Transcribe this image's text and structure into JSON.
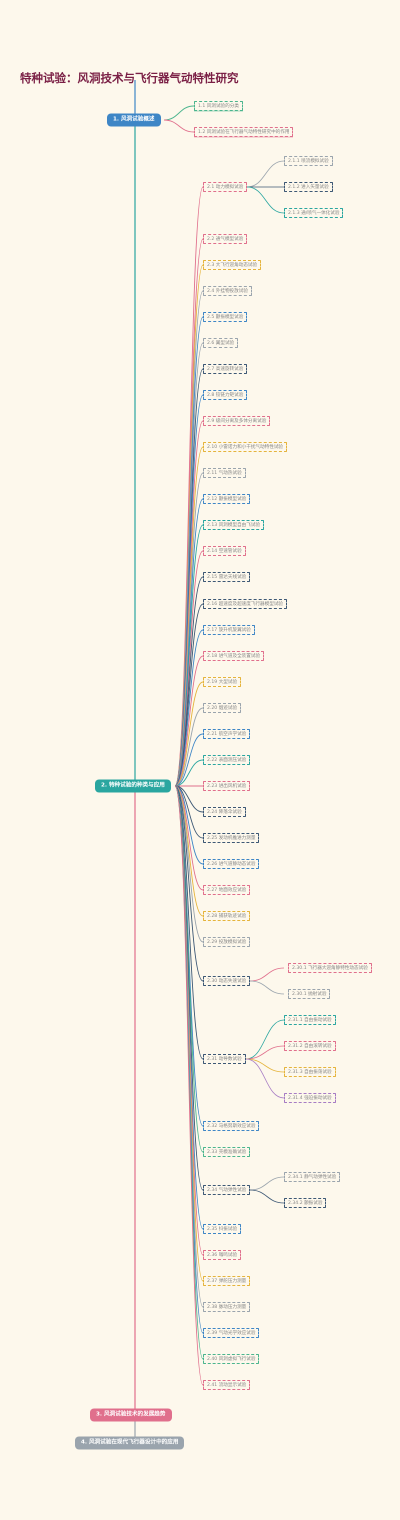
{
  "title": "特种试验：风洞技术与飞行器气动特性研究",
  "colors": {
    "teal": "#2aa6a0",
    "blue": "#3e86c6",
    "yellow": "#e5b43c",
    "pink": "#e06f8c",
    "purple": "#a77cc4",
    "navy": "#3d5875",
    "gray": "#9aa4ad",
    "green": "#4bb58e",
    "red": "#d94f53"
  },
  "sections": [
    {
      "label": "1. 风洞试验概述",
      "color": "#3e86c6",
      "children": [
        {
          "label": "1.1 风洞试验的分类",
          "color": "#4bb58e"
        },
        {
          "label": "1.2 风洞试验在飞行器气动特性研究中的作用",
          "color": "#e06f8c"
        }
      ]
    },
    {
      "label": "2. 特种试验的种类与应用",
      "color": "#2aa6a0",
      "children": [
        {
          "label": "2.1 动力模拟试验",
          "color": "#e06f8c",
          "children": [
            {
              "label": "2.1.1 喷流模拟试验",
              "color": "#9aa4ad"
            },
            {
              "label": "2.1.2 进入矢量试验",
              "color": "#3d5875"
            },
            {
              "label": "2.1.3 通/喷气一体化试验",
              "color": "#2aa6a0"
            }
          ]
        },
        {
          "label": "2.2 通气模型试验",
          "color": "#e06f8c"
        },
        {
          "label": "2.3 大飞行迎角动态试验",
          "color": "#e5b43c"
        },
        {
          "label": "2.4 外挂物投放试验",
          "color": "#9aa4ad"
        },
        {
          "label": "2.5 颤振模型试验",
          "color": "#3e86c6"
        },
        {
          "label": "2.6 翼型试验",
          "color": "#9aa4ad"
        },
        {
          "label": "2.7 高速旋转试验",
          "color": "#3d5875"
        },
        {
          "label": "2.8 铰链力矩试验",
          "color": "#3e86c6"
        },
        {
          "label": "2.9 级间分离及多体分离试验",
          "color": "#e06f8c"
        },
        {
          "label": "2.10 小雷诺力和小干扰气动特性试验",
          "color": "#e5b43c"
        },
        {
          "label": "2.11 气动热试验",
          "color": "#9aa4ad"
        },
        {
          "label": "2.12 颤振模型试验",
          "color": "#3e86c6"
        },
        {
          "label": "2.13 风洞模型自由飞试验",
          "color": "#2aa6a0"
        },
        {
          "label": "2.14 空速管试验",
          "color": "#e06f8c"
        },
        {
          "label": "2.15 雷达天线试验",
          "color": "#3d5875"
        },
        {
          "label": "2.16 超速度及超速度飞行器模型试验",
          "color": "#3d5875"
        },
        {
          "label": "2.17 旋升机旋翼试验",
          "color": "#3e86c6"
        },
        {
          "label": "2.18 进气道及全装置试验",
          "color": "#e06f8c"
        },
        {
          "label": "2.19 大型试验",
          "color": "#e5b43c"
        },
        {
          "label": "2.20 烟迹试验",
          "color": "#9aa4ad"
        },
        {
          "label": "2.21 航空声学试验",
          "color": "#3e86c6"
        },
        {
          "label": "2.22 表面测压试验",
          "color": "#2aa6a0"
        },
        {
          "label": "2.23 进出风机试验",
          "color": "#e06f8c"
        },
        {
          "label": "2.24 降落伞试验",
          "color": "#3d5875"
        },
        {
          "label": "2.25 发动机推进力测量",
          "color": "#3d5875"
        },
        {
          "label": "2.26 进气道静动态试验",
          "color": "#3e86c6"
        },
        {
          "label": "2.27 地面效应试验",
          "color": "#e06f8c"
        },
        {
          "label": "2.28 捕获轨迹试验",
          "color": "#e5b43c"
        },
        {
          "label": "2.29 投放模拟试验",
          "color": "#9aa4ad"
        },
        {
          "label": "2.30 动态失速试验",
          "color": "#3d5875",
          "children": [
            {
              "label": "2.30.1 飞行器大迎角静特性动态试验",
              "color": "#e06f8c"
            },
            {
              "label": "2.30.1 抛射试验",
              "color": "#9aa4ad"
            }
          ]
        },
        {
          "label": "2.31 动导数试验",
          "color": "#3d5875",
          "children": [
            {
              "label": "2.31.1 自由振动试验",
              "color": "#2aa6a0"
            },
            {
              "label": "2.31.2 自由滚转试验",
              "color": "#e06f8c"
            },
            {
              "label": "2.31.3 自由振荡试验",
              "color": "#e5b43c"
            },
            {
              "label": "2.31.4 强迫振动试验",
              "color": "#a77cc4"
            }
          ]
        },
        {
          "label": "2.32 马格努斯效应试验",
          "color": "#3e86c6"
        },
        {
          "label": "2.33 壳模准确试验",
          "color": "#4bb58e"
        },
        {
          "label": "2.34 气动弹性试验",
          "color": "#3d5875",
          "children": [
            {
              "label": "2.34.1 静气动弹性试验",
              "color": "#9aa4ad"
            },
            {
              "label": "2.34.2 颤振试验",
              "color": "#3d5875"
            }
          ]
        },
        {
          "label": "2.35 抖振试验",
          "color": "#3e86c6"
        },
        {
          "label": "2.36 嗡鸣试验",
          "color": "#e06f8c"
        },
        {
          "label": "2.37 弹舵压力测量",
          "color": "#e5b43c"
        },
        {
          "label": "2.38 脉动压力测量",
          "color": "#9aa4ad"
        },
        {
          "label": "2.39 气动光学效应试验",
          "color": "#3e86c6"
        },
        {
          "label": "2.40 风洞虚拟飞行试验",
          "color": "#4bb58e"
        },
        {
          "label": "2.41 流动显示试验",
          "color": "#e06f8c"
        }
      ]
    },
    {
      "label": "3. 风洞试验技术的发展趋势",
      "color": "#e06f8c",
      "children": []
    },
    {
      "label": "4. 风洞试验在现代飞行器设计中的应用",
      "color": "#9aa4ad",
      "children": []
    }
  ]
}
